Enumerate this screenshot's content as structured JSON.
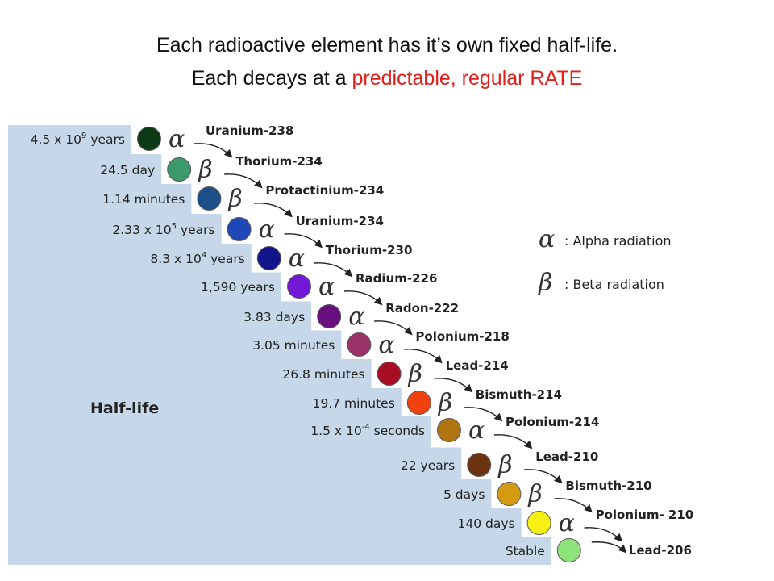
{
  "title": {
    "line1": "Each radioactive element has it’s own fixed half-life.",
    "line2_prefix": "Each decays at a ",
    "line2_highlight": "predictable, regular RATE",
    "highlight_color": "#e0201b"
  },
  "side_label": "Half-life",
  "legend": [
    {
      "symbol": "α",
      "text": ": Alpha radiation"
    },
    {
      "symbol": "β",
      "text": ": Beta radiation"
    }
  ],
  "background_color": "#c5d7e8",
  "chain": [
    {
      "half_life": "4.5 x 10",
      "half_life_exp": "9",
      "half_life_suffix": " years",
      "color": "#0b3a14",
      "decay": "α",
      "element": "Uranium-238"
    },
    {
      "half_life": "24.5 day",
      "color": "#3a9a6b",
      "decay": "β",
      "element": "Thorium-234"
    },
    {
      "half_life": "1.14 minutes",
      "color": "#1d4f8a",
      "decay": "β",
      "element": "Protactinium-234"
    },
    {
      "half_life": "2.33 x 10",
      "half_life_exp": "5",
      "half_life_suffix": " years",
      "color": "#1f47b8",
      "decay": "α",
      "element": "Uranium-234"
    },
    {
      "half_life": "8.3 x 10",
      "half_life_exp": "4",
      "half_life_suffix": " years",
      "color": "#10168a",
      "decay": "α",
      "element": "Thorium-230"
    },
    {
      "half_life": "1,590 years",
      "color": "#7418d8",
      "decay": "α",
      "element": "Radium-226"
    },
    {
      "half_life": "3.83 days",
      "color": "#6a0f7e",
      "decay": "α",
      "element": "Radon-222",
      "element_color": "#e0201b"
    },
    {
      "half_life": "3.05 minutes",
      "color": "#9a3468",
      "decay": "α",
      "element": "Polonium-218"
    },
    {
      "half_life": "26.8 minutes",
      "color": "#a80d24",
      "decay": "β",
      "element": "Lead-214"
    },
    {
      "half_life": "19.7 minutes",
      "color": "#f0420e",
      "decay": "β",
      "element": "Bismuth-214"
    },
    {
      "half_life": "1.5 x 10",
      "half_life_exp": "-4",
      "half_life_suffix": " seconds",
      "color": "#b07410",
      "decay": "α",
      "element": "Polonium-214"
    },
    {
      "half_life": "22 years",
      "color": "#6b3310",
      "decay": "β",
      "element": "Lead-210"
    },
    {
      "half_life": "5 days",
      "color": "#d69a12",
      "decay": "β",
      "element": "Bismuth-210"
    },
    {
      "half_life": "140 days",
      "color": "#f6f014",
      "decay": "α",
      "element": "Polonium- 210"
    },
    {
      "half_life": "Stable",
      "color": "#8ee27a",
      "element": "Lead-206"
    }
  ]
}
